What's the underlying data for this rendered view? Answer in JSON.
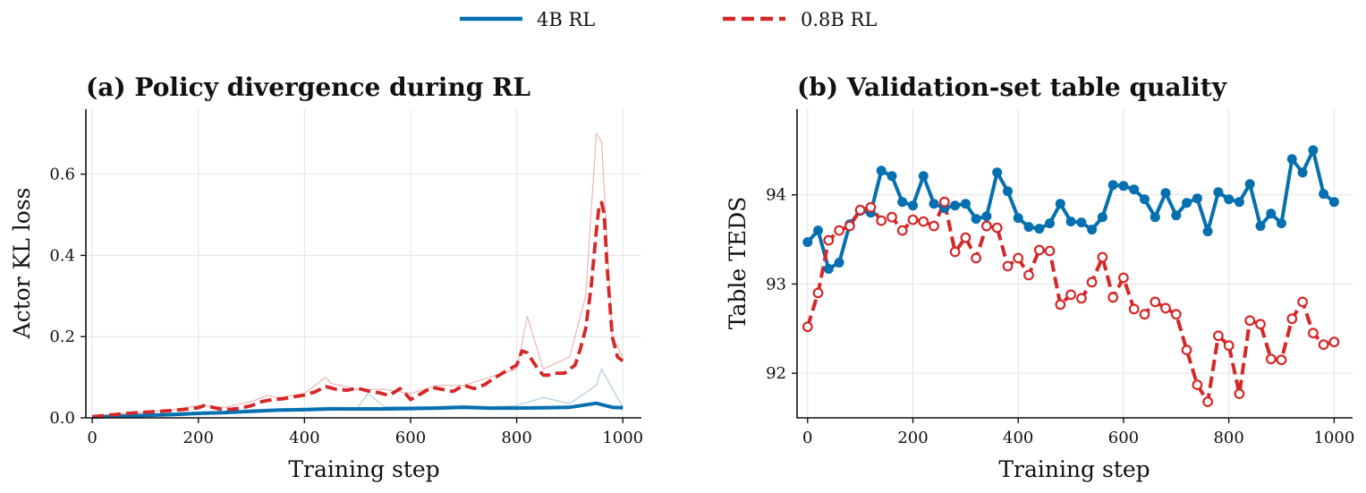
{
  "legend": [
    {
      "name": "4B RL",
      "color": "#0570b0",
      "dash": "solid"
    },
    {
      "name": "0.8B RL",
      "color": "#d62728",
      "dash": "dashed"
    }
  ],
  "chart_data": [
    {
      "type": "line",
      "title": "(a) Policy divergence during RL",
      "xlabel": "Training step",
      "ylabel": "Actor KL loss",
      "xlim": [
        -12,
        1035
      ],
      "ylim": [
        0,
        0.76
      ],
      "xticks": [
        0,
        200,
        400,
        600,
        800,
        1000
      ],
      "yticks": [
        0.0,
        0.2,
        0.4,
        0.6
      ],
      "ytick_labels": [
        "0.0",
        "0.2",
        "0.4",
        "0.6"
      ],
      "grid": true,
      "series": [
        {
          "name": "4B RL",
          "color": "#0570b0",
          "raw": {
            "x": [
              0,
              50,
              100,
              150,
              200,
              250,
              300,
              350,
              400,
              450,
              500,
              520,
              550,
              600,
              650,
              700,
              750,
              800,
              850,
              900,
              950,
              960,
              1000
            ],
            "y": [
              0.004,
              0.007,
              0.009,
              0.012,
              0.014,
              0.016,
              0.02,
              0.022,
              0.024,
              0.026,
              0.025,
              0.06,
              0.028,
              0.027,
              0.028,
              0.03,
              0.027,
              0.03,
              0.05,
              0.035,
              0.08,
              0.12,
              0.026
            ]
          },
          "smoothed": {
            "x": [
              0,
              50,
              100,
              150,
              200,
              250,
              300,
              350,
              400,
              450,
              500,
              550,
              600,
              650,
              700,
              750,
              800,
              850,
              900,
              950,
              980,
              1000
            ],
            "y": [
              0.002,
              0.004,
              0.006,
              0.008,
              0.011,
              0.013,
              0.016,
              0.019,
              0.02,
              0.022,
              0.022,
              0.022,
              0.023,
              0.024,
              0.026,
              0.024,
              0.024,
              0.025,
              0.026,
              0.036,
              0.026,
              0.025
            ]
          }
        },
        {
          "name": "0.8B RL",
          "color": "#d62728",
          "raw": {
            "x": [
              0,
              50,
              100,
              150,
              200,
              250,
              300,
              330,
              350,
              400,
              440,
              450,
              500,
              550,
              600,
              650,
              700,
              750,
              800,
              820,
              850,
              900,
              930,
              950,
              960,
              980,
              1000
            ],
            "y": [
              0.003,
              0.01,
              0.014,
              0.02,
              0.03,
              0.026,
              0.04,
              0.055,
              0.05,
              0.06,
              0.1,
              0.085,
              0.07,
              0.07,
              0.06,
              0.08,
              0.08,
              0.1,
              0.12,
              0.25,
              0.12,
              0.15,
              0.3,
              0.7,
              0.68,
              0.2,
              0.15
            ]
          },
          "smoothed": {
            "x": [
              0,
              25,
              50,
              75,
              100,
              125,
              150,
              175,
              200,
              210,
              220,
              240,
              260,
              280,
              300,
              320,
              340,
              360,
              380,
              400,
              420,
              440,
              460,
              480,
              500,
              520,
              540,
              560,
              580,
              590,
              600,
              620,
              640,
              660,
              680,
              700,
              720,
              740,
              760,
              780,
              800,
              810,
              820,
              830,
              840,
              850,
              860,
              870,
              880,
              890,
              900,
              910,
              920,
              930,
              940,
              950,
              955,
              960,
              965,
              970,
              980,
              990,
              1000
            ],
            "y": [
              0.003,
              0.006,
              0.009,
              0.012,
              0.014,
              0.016,
              0.018,
              0.021,
              0.025,
              0.03,
              0.028,
              0.022,
              0.021,
              0.024,
              0.03,
              0.04,
              0.045,
              0.047,
              0.052,
              0.056,
              0.064,
              0.077,
              0.07,
              0.068,
              0.073,
              0.066,
              0.062,
              0.055,
              0.072,
              0.06,
              0.045,
              0.06,
              0.075,
              0.07,
              0.065,
              0.08,
              0.072,
              0.082,
              0.1,
              0.115,
              0.13,
              0.165,
              0.16,
              0.14,
              0.12,
              0.105,
              0.105,
              0.11,
              0.11,
              0.11,
              0.12,
              0.13,
              0.17,
              0.22,
              0.32,
              0.46,
              0.52,
              0.53,
              0.5,
              0.38,
              0.2,
              0.15,
              0.14
            ]
          }
        }
      ]
    },
    {
      "type": "line",
      "title": "(b) Validation-set table quality",
      "xlabel": "Training step",
      "ylabel": "Table TEDS",
      "xlim": [
        -20,
        1035
      ],
      "ylim": [
        91.5,
        94.96
      ],
      "xticks": [
        0,
        200,
        400,
        600,
        800,
        1000
      ],
      "yticks": [
        92,
        93,
        94
      ],
      "ytick_labels": [
        "92",
        "93",
        "94"
      ],
      "grid": true,
      "series": [
        {
          "name": "4B RL",
          "color": "#0570b0",
          "x": [
            0,
            20,
            40,
            60,
            80,
            100,
            120,
            140,
            160,
            180,
            200,
            220,
            240,
            260,
            280,
            300,
            320,
            340,
            360,
            380,
            400,
            420,
            440,
            460,
            480,
            500,
            520,
            540,
            560,
            580,
            600,
            620,
            640,
            660,
            680,
            700,
            720,
            740,
            760,
            780,
            800,
            820,
            840,
            860,
            880,
            900,
            920,
            940,
            960,
            980,
            1000
          ],
          "y": [
            93.47,
            93.6,
            93.17,
            93.24,
            93.67,
            93.82,
            93.8,
            94.27,
            94.21,
            93.92,
            93.88,
            94.21,
            93.9,
            93.85,
            93.88,
            93.9,
            93.73,
            93.76,
            94.25,
            94.04,
            93.74,
            93.64,
            93.62,
            93.68,
            93.9,
            93.7,
            93.69,
            93.61,
            93.75,
            94.11,
            94.1,
            94.06,
            93.95,
            93.75,
            94.02,
            93.77,
            93.91,
            93.96,
            93.59,
            94.03,
            93.95,
            93.92,
            94.12,
            93.65,
            93.79,
            93.68,
            94.4,
            94.25,
            94.5,
            94.01,
            93.92
          ]
        },
        {
          "name": "0.8B RL",
          "color": "#d62728",
          "x": [
            0,
            20,
            40,
            60,
            80,
            100,
            120,
            140,
            160,
            180,
            200,
            220,
            240,
            260,
            280,
            300,
            320,
            340,
            360,
            380,
            400,
            420,
            440,
            460,
            480,
            500,
            520,
            540,
            560,
            580,
            600,
            620,
            640,
            660,
            680,
            700,
            720,
            740,
            760,
            780,
            800,
            820,
            840,
            860,
            880,
            900,
            920,
            940,
            960,
            980,
            1000
          ],
          "y": [
            92.52,
            92.9,
            93.49,
            93.6,
            93.65,
            93.83,
            93.86,
            93.71,
            93.75,
            93.6,
            93.72,
            93.7,
            93.65,
            93.92,
            93.36,
            93.52,
            93.29,
            93.65,
            93.63,
            93.2,
            93.29,
            93.1,
            93.38,
            93.37,
            92.77,
            92.88,
            92.84,
            93.02,
            93.3,
            92.85,
            93.07,
            92.72,
            92.66,
            92.8,
            92.73,
            92.66,
            92.26,
            91.87,
            91.68,
            92.42,
            92.31,
            91.77,
            92.59,
            92.55,
            92.16,
            92.15,
            92.61,
            92.8,
            92.45,
            92.32,
            92.35
          ]
        }
      ]
    }
  ]
}
